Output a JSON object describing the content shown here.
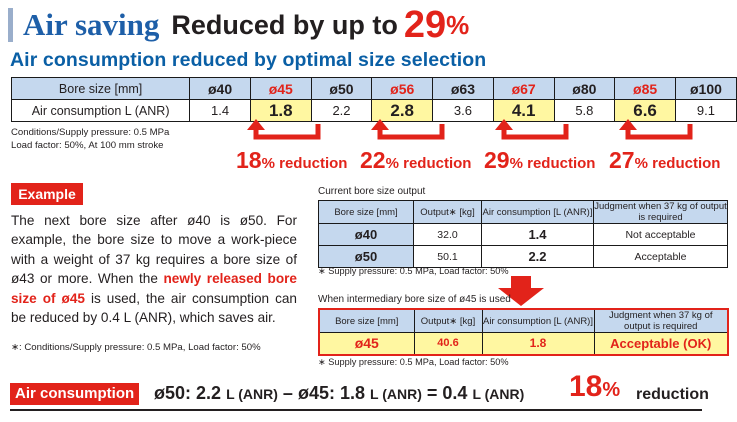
{
  "header": {
    "title_main": "Air saving",
    "title_reduced": "Reduced by up to",
    "title_pct_num": "29",
    "title_pct_sym": "%"
  },
  "subtitle": "Air consumption reduced by optimal size selection",
  "top_table": {
    "row1_label": "Bore size [mm]",
    "row2_label": "Air consumption L (ANR)",
    "sizes": [
      "ø40",
      "ø45",
      "ø50",
      "ø56",
      "ø63",
      "ø67",
      "ø80",
      "ø85",
      "ø100"
    ],
    "values": [
      "1.4",
      "1.8",
      "2.2",
      "2.8",
      "3.6",
      "4.1",
      "5.8",
      "6.6",
      "9.1"
    ]
  },
  "conditions": {
    "line1": "Conditions/Supply pressure: 0.5 MPa",
    "line2": "Load factor: 50%, At 100 mm stroke"
  },
  "reductions": [
    {
      "num": "18",
      "pct": "%",
      "word": " reduction"
    },
    {
      "num": "22",
      "pct": "%",
      "word": " reduction"
    },
    {
      "num": "29",
      "pct": "%",
      "word": " reduction"
    },
    {
      "num": "27",
      "pct": "%",
      "word": " reduction"
    }
  ],
  "example": {
    "badge": "Example",
    "text_before": "The next bore size after ø40 is ø50. For example, the bore size to move a work-piece with a weight of 37 kg requires a bore size of ø43 or more. When the ",
    "text_red": "newly released bore size of ø45",
    "text_after": " is used, the air consumption can be reduced by 0.4 L (ANR), which saves air.",
    "note": "∗: Conditions/Supply pressure: 0.5 MPa, Load factor: 50%"
  },
  "table1": {
    "caption": "Current bore size output",
    "headers": [
      "Bore size [mm]",
      "Output∗ [kg]",
      "Air consumption [L (ANR)]",
      "Judgment when 37 kg of output is required"
    ],
    "rows": [
      [
        "ø40",
        "32.0",
        "1.4",
        "Not acceptable"
      ],
      [
        "ø50",
        "50.1",
        "2.2",
        "Acceptable"
      ]
    ],
    "footnote": "∗ Supply pressure: 0.5 MPa, Load factor: 50%"
  },
  "table2": {
    "caption": "When intermediary bore size of ø45 is used",
    "headers": [
      "Bore size [mm]",
      "Output∗ [kg]",
      "Air consumption [L (ANR)]",
      "Judgment when 37 kg of output is required"
    ],
    "row": [
      "ø45",
      "40.6",
      "1.8",
      "Acceptable (OK)"
    ],
    "footnote": "∗ Supply pressure: 0.5 MPa, Load factor: 50%"
  },
  "bottom": {
    "badge": "Air consumption",
    "f_part1": "ø50: 2.2",
    "f_unit1": "L (ANR)",
    "f_minus": "–",
    "f_part2": "ø45: 1.8",
    "f_unit2": "L (ANR)",
    "f_eq": "= 0.4",
    "f_unit3": "L (ANR)",
    "pct_num": "18",
    "pct_sym": "%",
    "word": "reduction"
  },
  "colors": {
    "accent_red": "#e2231a",
    "title_blue": "#1e5fa8",
    "header_blue": "#c5d8ee",
    "highlight_yellow": "#fff7a1"
  }
}
